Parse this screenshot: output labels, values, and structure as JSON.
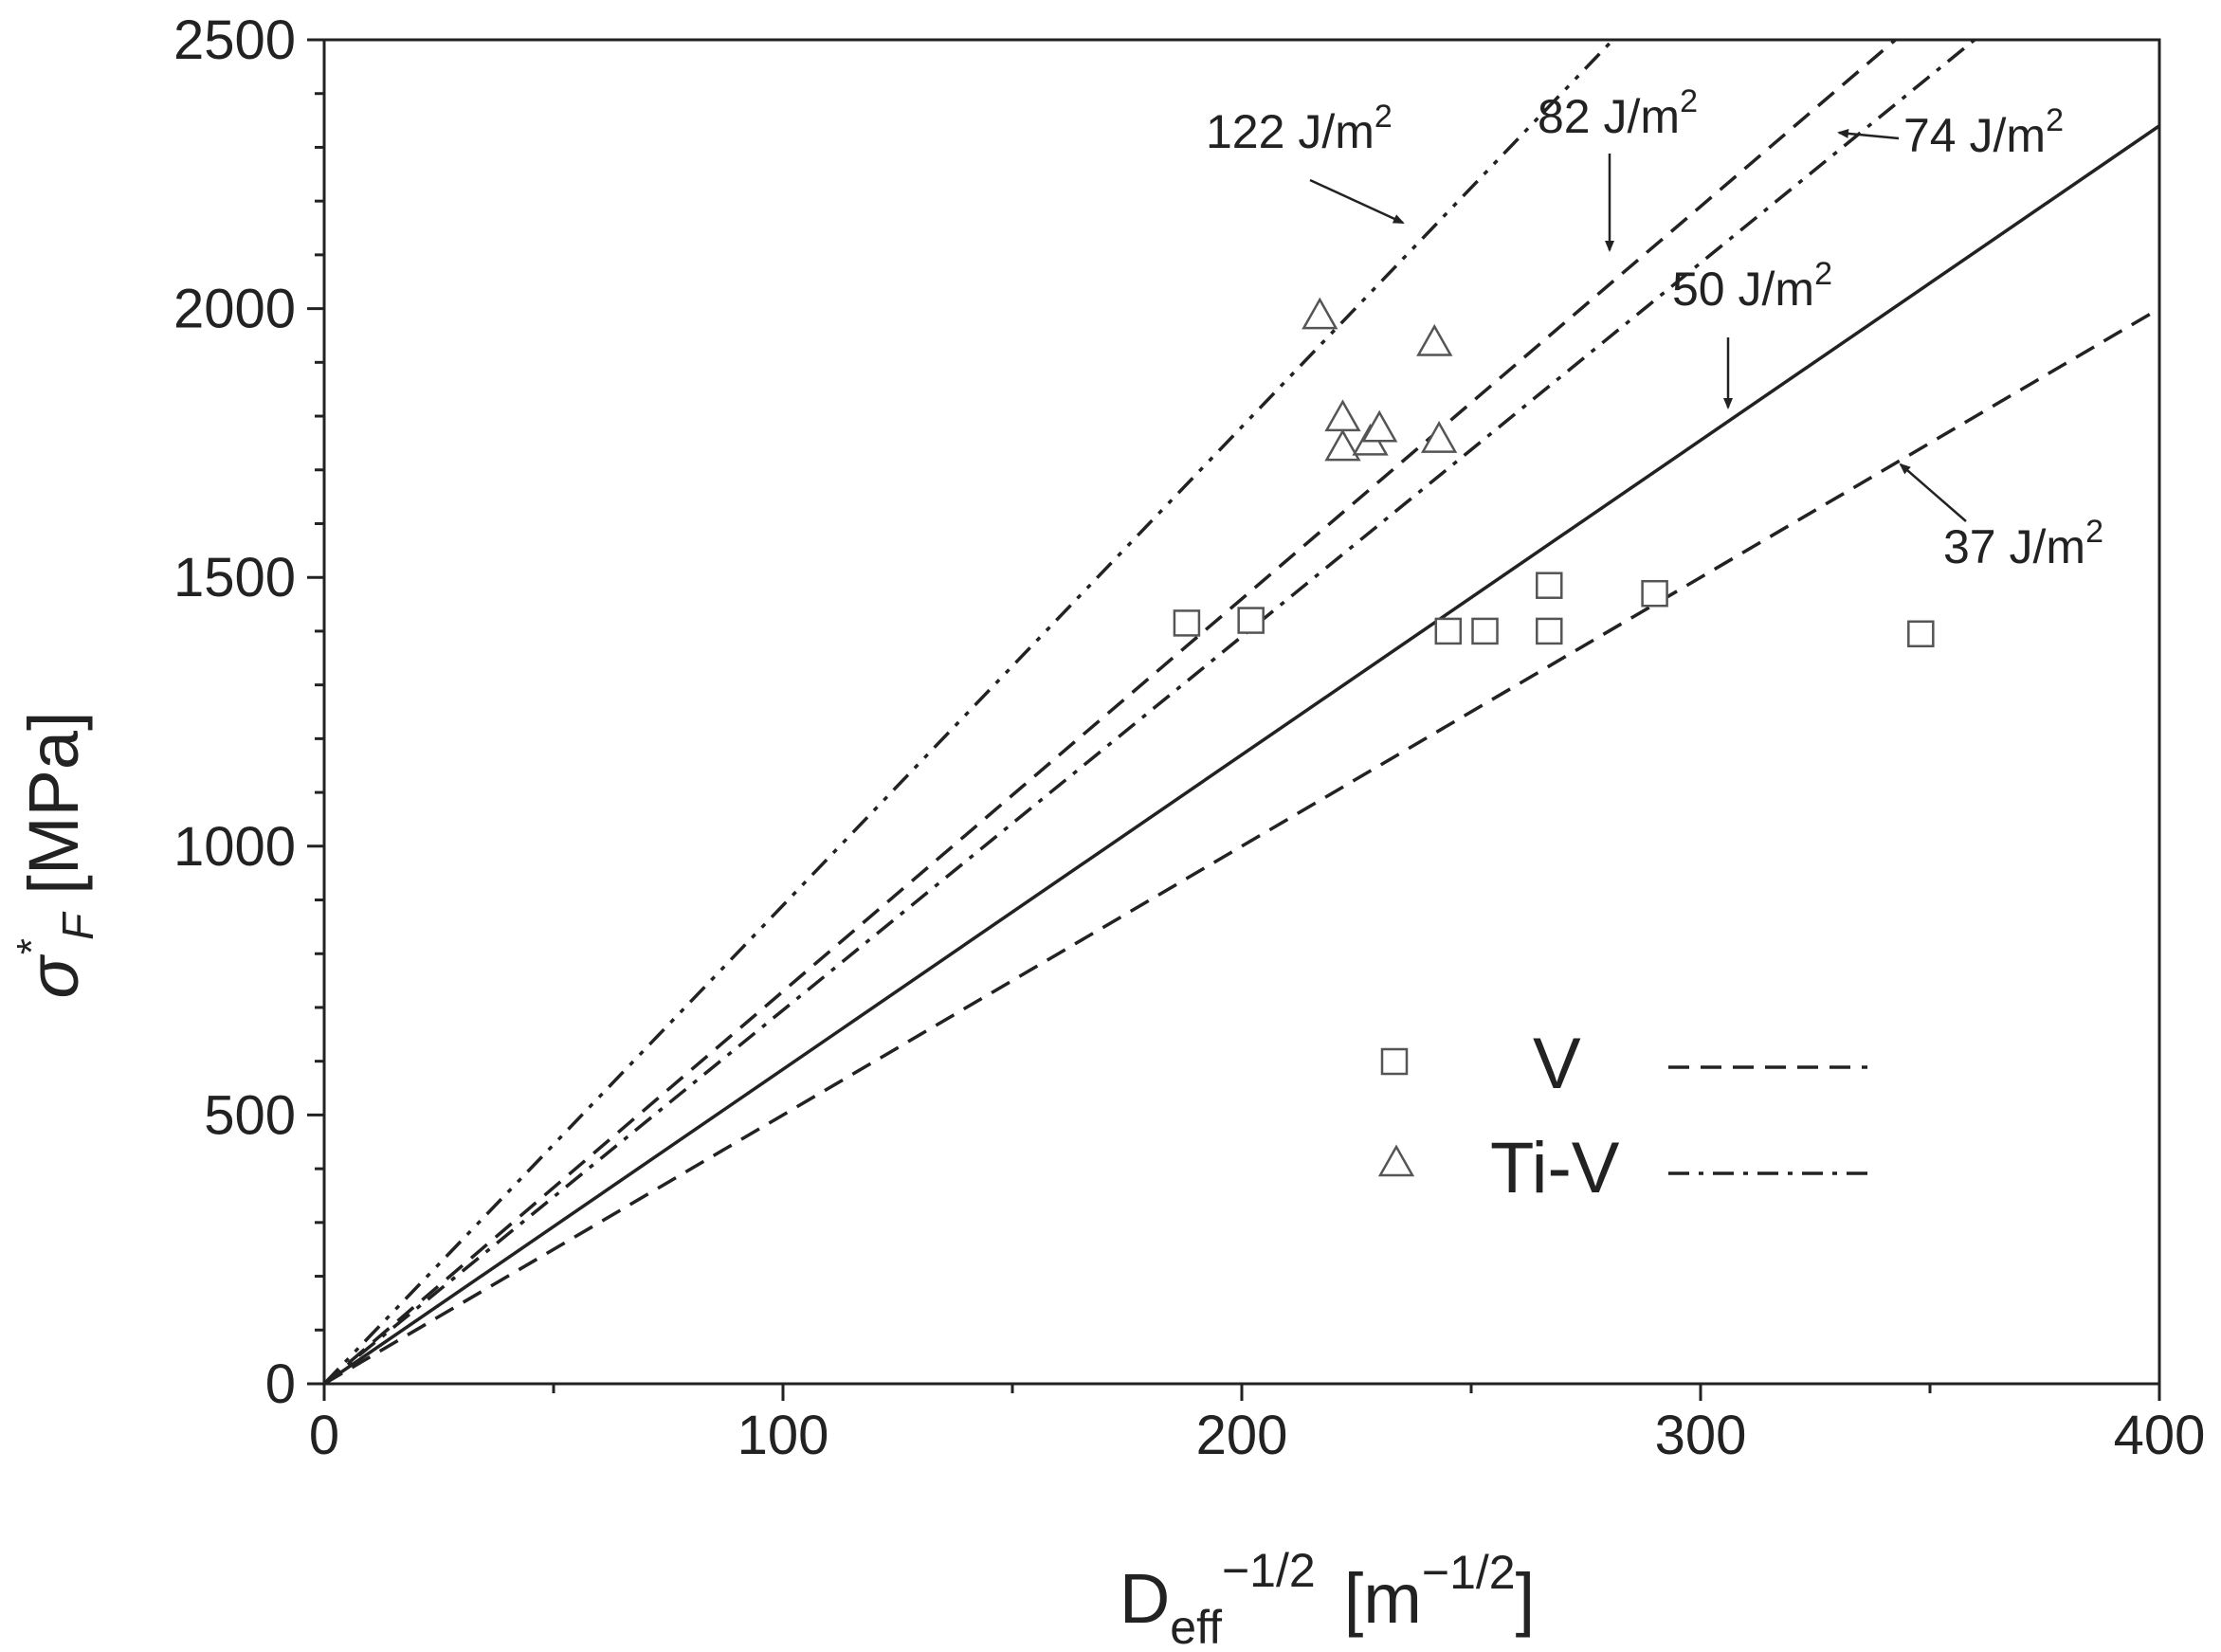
{
  "chart_data": {
    "type": "scatter",
    "xlim": [
      0,
      400
    ],
    "ylim": [
      0,
      2500
    ],
    "x_ticks": [
      0,
      100,
      200,
      300,
      400
    ],
    "y_ticks": [
      0,
      500,
      1000,
      1500,
      2000,
      2500
    ],
    "xlabel": {
      "main": "D",
      "sub": "eff",
      "sup": "−1/2",
      "unit": "[m",
      "unit_sup": "−1/2",
      "unit_close": "]"
    },
    "ylabel": {
      "symbol": "σ",
      "sup": "*",
      "sub": "F",
      "unit": "[MPa]"
    },
    "series": [
      {
        "name": "V",
        "marker": "square",
        "points": [
          [
            188,
            1415
          ],
          [
            202,
            1420
          ],
          [
            245,
            1400
          ],
          [
            253,
            1400
          ],
          [
            267,
            1485
          ],
          [
            267,
            1400
          ],
          [
            290,
            1470
          ],
          [
            348,
            1395
          ]
        ]
      },
      {
        "name": "Ti-V",
        "marker": "triangle",
        "points": [
          [
            217,
            1985
          ],
          [
            222,
            1795
          ],
          [
            222,
            1740
          ],
          [
            228,
            1750
          ],
          [
            230,
            1775
          ],
          [
            242,
            1935
          ],
          [
            243,
            1755
          ]
        ]
      }
    ],
    "lines": [
      {
        "energy": "122 J/m",
        "sup": "2",
        "slope": 8.9,
        "style": "dash-dot-dot"
      },
      {
        "energy": "82 J/m",
        "sup": "2",
        "slope": 7.3,
        "style": "dashed"
      },
      {
        "energy": "74 J/m",
        "sup": "2",
        "slope": 6.95,
        "style": "dash-dot"
      },
      {
        "energy": "50 J/m",
        "sup": "2",
        "slope": 5.85,
        "style": "solid"
      },
      {
        "energy": "37 J/m",
        "sup": "2",
        "slope": 5.0,
        "style": "dashed"
      }
    ],
    "legend": {
      "position": "lower-right",
      "items": [
        {
          "label": "V",
          "marker": "square",
          "line": "dashed"
        },
        {
          "label": "Ti-V",
          "marker": "triangle",
          "line": "dash-dot"
        }
      ]
    }
  }
}
